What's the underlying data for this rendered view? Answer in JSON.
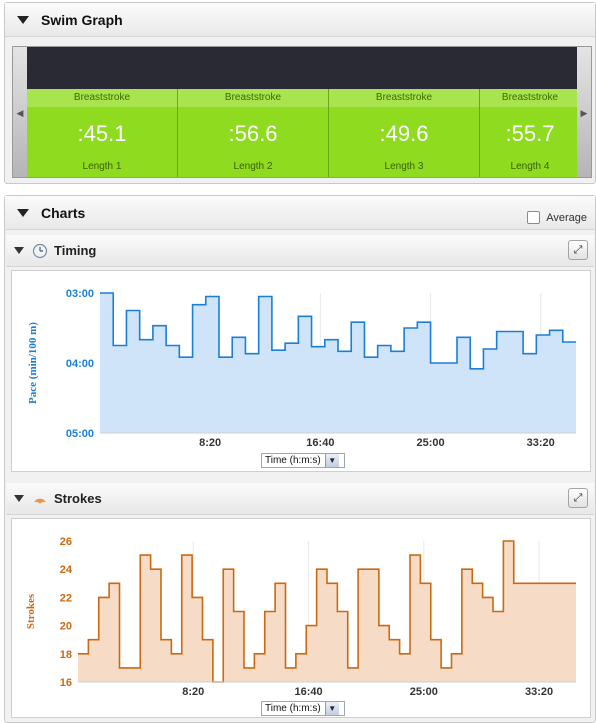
{
  "swim_graph": {
    "title": "Swim Graph",
    "lengths": [
      {
        "stroke": "Breaststroke",
        "time": ":45.1",
        "label": "Length 1"
      },
      {
        "stroke": "Breaststroke",
        "time": ":56.6",
        "label": "Length 2"
      },
      {
        "stroke": "Breaststroke",
        "time": ":49.6",
        "label": "Length 3"
      },
      {
        "stroke": "Breaststroke",
        "time": ":55.7",
        "label": "Length 4"
      }
    ],
    "accent": "#8fdb1f"
  },
  "charts": {
    "title": "Charts",
    "average_label": "Average",
    "timing": {
      "title": "Timing",
      "icon": "clock-icon",
      "select_value": "Time (h:m:s)"
    },
    "strokes": {
      "title": "Strokes",
      "icon": "strokes-icon",
      "select_value": "Time (h:m:s)"
    }
  },
  "chart_data": [
    {
      "type": "area",
      "ylabel": "Pace (min/100 m)",
      "color": "#1a7fd8",
      "fill": "#cfe4f8",
      "y_ticks": [
        "03:00",
        "04:00",
        "05:00"
      ],
      "x_ticks": [
        "8:20",
        "16:40",
        "25:00",
        "33:20"
      ],
      "ylim_seconds": [
        180,
        300
      ],
      "x_seconds": [
        0,
        30,
        60,
        90,
        120,
        150,
        180,
        210,
        240,
        270,
        300,
        330,
        360,
        390,
        420,
        450,
        480,
        510,
        540,
        570,
        600,
        630,
        660,
        690,
        720,
        750,
        780,
        810,
        840,
        870,
        900,
        930,
        960,
        990,
        1020,
        1050,
        1080,
        1110,
        1140,
        1170,
        1200,
        1230,
        1260,
        1290,
        1320,
        1350,
        1380,
        1410,
        1440,
        1470,
        1500,
        1530,
        1560,
        1590,
        1620,
        1650,
        1680,
        1710,
        1740,
        1770,
        1800,
        1830,
        1860,
        1890,
        1920,
        1950,
        1980,
        2010,
        2040,
        2070,
        2100,
        2130
      ],
      "values_seconds": [
        180,
        180,
        225,
        225,
        195,
        195,
        220,
        220,
        208,
        208,
        225,
        225,
        235,
        235,
        190,
        190,
        183,
        183,
        235,
        235,
        218,
        218,
        232,
        232,
        183,
        183,
        229,
        229,
        223,
        223,
        200,
        200,
        226,
        226,
        220,
        220,
        230,
        230,
        205,
        205,
        235,
        235,
        225,
        225,
        230,
        230,
        210,
        210,
        205,
        205,
        240,
        240,
        240,
        240,
        218,
        218,
        245,
        245,
        228,
        228,
        213,
        213,
        213,
        213,
        232,
        232,
        216,
        216,
        212,
        212,
        222,
        222
      ]
    },
    {
      "type": "area",
      "ylabel": "Strokes",
      "color": "#c96a12",
      "fill": "#f6dcc6",
      "y_ticks": [
        16,
        18,
        20,
        22,
        24,
        26
      ],
      "x_ticks": [
        "8:20",
        "16:40",
        "25:00",
        "33:20"
      ],
      "ylim": [
        16,
        26
      ],
      "x_seconds": [
        0,
        45,
        90,
        135,
        180,
        225,
        270,
        315,
        360,
        405,
        450,
        495,
        540,
        585,
        630,
        675,
        720,
        765,
        810,
        855,
        900,
        945,
        990,
        1035,
        1080,
        1125,
        1170,
        1215,
        1260,
        1305,
        1350,
        1395,
        1440,
        1485,
        1530,
        1575,
        1620,
        1665,
        1710,
        1755,
        1800,
        1845,
        1890,
        1935,
        1980,
        2025,
        2070,
        2115
      ],
      "values": [
        18,
        19,
        22,
        23,
        17,
        17,
        25,
        24,
        19,
        18,
        25,
        22,
        19,
        16,
        24,
        21,
        17,
        18,
        21,
        23,
        17,
        18,
        20,
        24,
        23,
        21,
        17,
        24,
        24,
        20,
        19,
        18,
        25,
        23,
        19,
        17,
        18,
        24,
        23,
        22,
        21,
        26,
        23,
        23,
        23,
        23,
        23,
        23
      ]
    }
  ]
}
